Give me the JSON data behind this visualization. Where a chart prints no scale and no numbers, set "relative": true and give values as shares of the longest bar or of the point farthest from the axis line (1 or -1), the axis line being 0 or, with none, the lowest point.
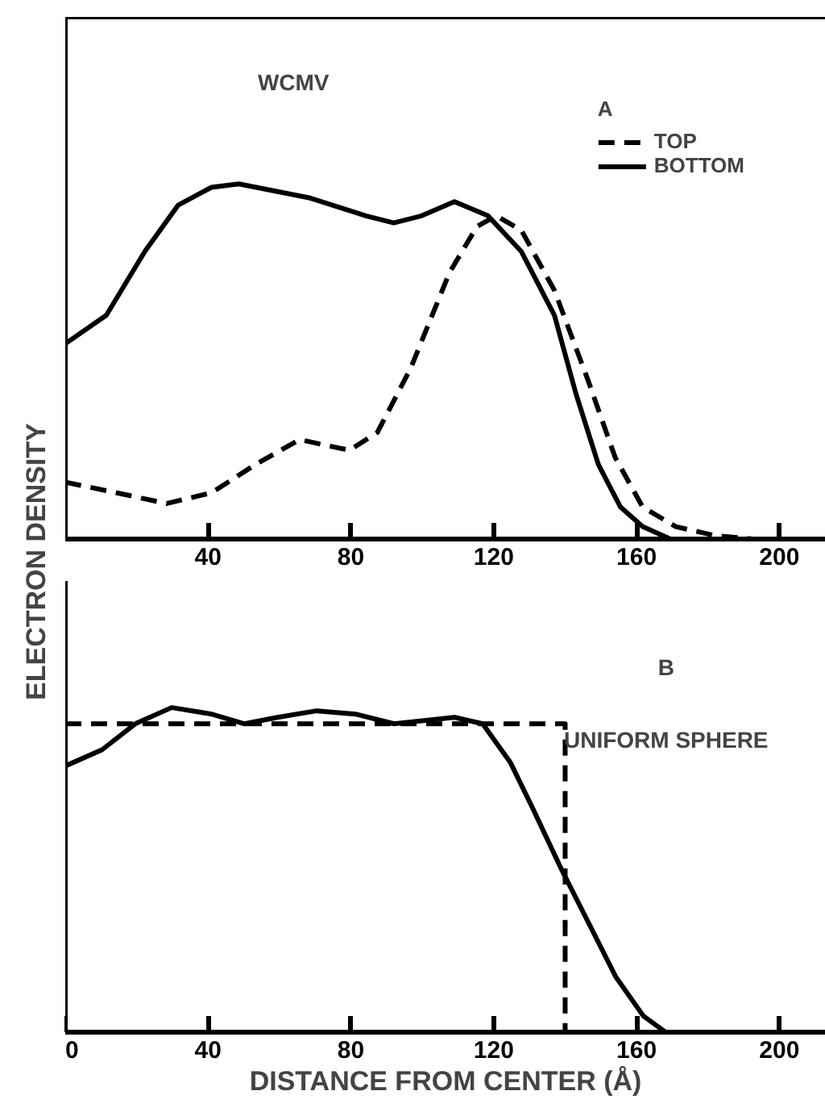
{
  "chart_data": [
    {
      "type": "line",
      "relative": true,
      "ylabel": "ELECTRON DENSITY",
      "legend_title": "A",
      "legend": "top right",
      "annotations": [
        "WCMV"
      ],
      "tick_labels": "x",
      "grid": false,
      "xlim": [
        0,
        213
      ],
      "xticks": [
        40,
        80,
        120,
        160,
        200
      ],
      "series": [
        {
          "name": "TOP",
          "color": "#000000",
          "line_style": "dashed",
          "x": [
            0,
            14.5,
            28.4,
            40.9,
            53.3,
            65.6,
            79.6,
            87.4,
            96.7,
            107.6,
            115.3,
            120.7,
            127.7,
            137,
            146.3,
            154,
            161.7,
            171,
            181.9,
            192.6
          ],
          "values": [
            0.16,
            0.13,
            0.1,
            0.13,
            0.21,
            0.28,
            0.25,
            0.3,
            0.48,
            0.75,
            0.88,
            0.91,
            0.87,
            0.7,
            0.45,
            0.23,
            0.09,
            0.035,
            0.01,
            0
          ]
        },
        {
          "name": "BOTTOM",
          "color": "#000000",
          "line_style": "solid",
          "x": [
            0,
            11.5,
            22.3,
            31.6,
            40.9,
            48.6,
            68.6,
            84.2,
            92,
            99.8,
            109,
            118.4,
            127.7,
            137,
            143,
            149.3,
            155.5,
            161.7,
            169.5
          ],
          "values": [
            0.55,
            0.63,
            0.81,
            0.94,
            0.99,
            1.0,
            0.96,
            0.91,
            0.89,
            0.91,
            0.95,
            0.91,
            0.81,
            0.63,
            0.41,
            0.21,
            0.09,
            0.035,
            0
          ]
        }
      ]
    },
    {
      "type": "line",
      "relative": true,
      "xlabel": "DISTANCE FROM CENTER (Å)",
      "annotations": [
        "B",
        "UNIFORM SPHERE"
      ],
      "tick_labels": "x",
      "grid": false,
      "xlim": [
        0,
        213
      ],
      "xticks": [
        0,
        40,
        80,
        120,
        160,
        200
      ],
      "series": [
        {
          "color": "#000000",
          "line_style": "solid",
          "x": [
            0,
            10.3,
            19.6,
            29.8,
            40.9,
            50.2,
            59.5,
            70.4,
            81.2,
            92.1,
            109,
            116.9,
            124.7,
            130.9,
            138.6,
            146.4,
            154.2,
            161.9,
            168.1
          ],
          "values": [
            0.82,
            0.87,
            0.95,
            1.0,
            0.98,
            0.95,
            0.97,
            0.99,
            0.98,
            0.95,
            0.97,
            0.95,
            0.83,
            0.69,
            0.51,
            0.34,
            0.17,
            0.05,
            0
          ]
        },
        {
          "color": "#000000",
          "line_style": "dashed",
          "x": [
            0,
            140,
            140
          ],
          "values": [
            0.95,
            0.95,
            0
          ]
        }
      ]
    }
  ]
}
